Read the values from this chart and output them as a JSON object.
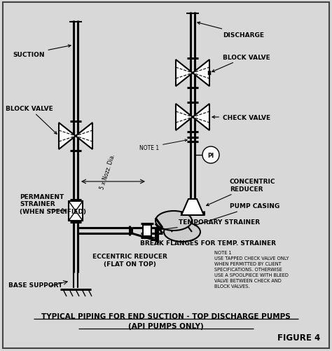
{
  "bg_color": "#d8d8d8",
  "border_color": "#555555",
  "line_color": "#000000",
  "title": "TYPICAL PIPING FOR END SUCTION - TOP DISCHARGE PUMPS",
  "subtitle": "(API PUMPS ONLY)",
  "figure_label": "FIGURE 4",
  "note1_text": "NOTE 1\nUSE TAPPED CHECK VALVE ONLY\nWHEN PERMITTED BY CLIENT\nSPECIFICATIONS. OTHERWISE\nUSE A SPOOLPIECE WITH BLEED\nVALVE BETWEEN CHECK AND\nBLOCK VALVES.",
  "labels": {
    "suction": "SUCTION",
    "discharge": "DISCHARGE",
    "block_valve_suction": "BLOCK VALVE",
    "block_valve_discharge": "BLOCK VALVE",
    "check_valve": "CHECK VALVE",
    "concentric_reducer": "CONCENTRIC\nREDUCER",
    "pump_casing": "PUMP CASING",
    "temporary_strainer": "TEMPORARY STRAINER",
    "break_flanges": "BREAK FLANGES FOR TEMP. STRAINER",
    "eccentric_reducer": "ECCENTRIC REDUCER\n(FLAT ON TOP)",
    "permanent_strainer": "PERMANENT\nSTRAINER\n(WHEN SPECIFIED)",
    "base_support": "BASE SUPPORT",
    "nozz_dia": "5 x Nozz. Dia.",
    "note1_label": "NOTE 1"
  }
}
